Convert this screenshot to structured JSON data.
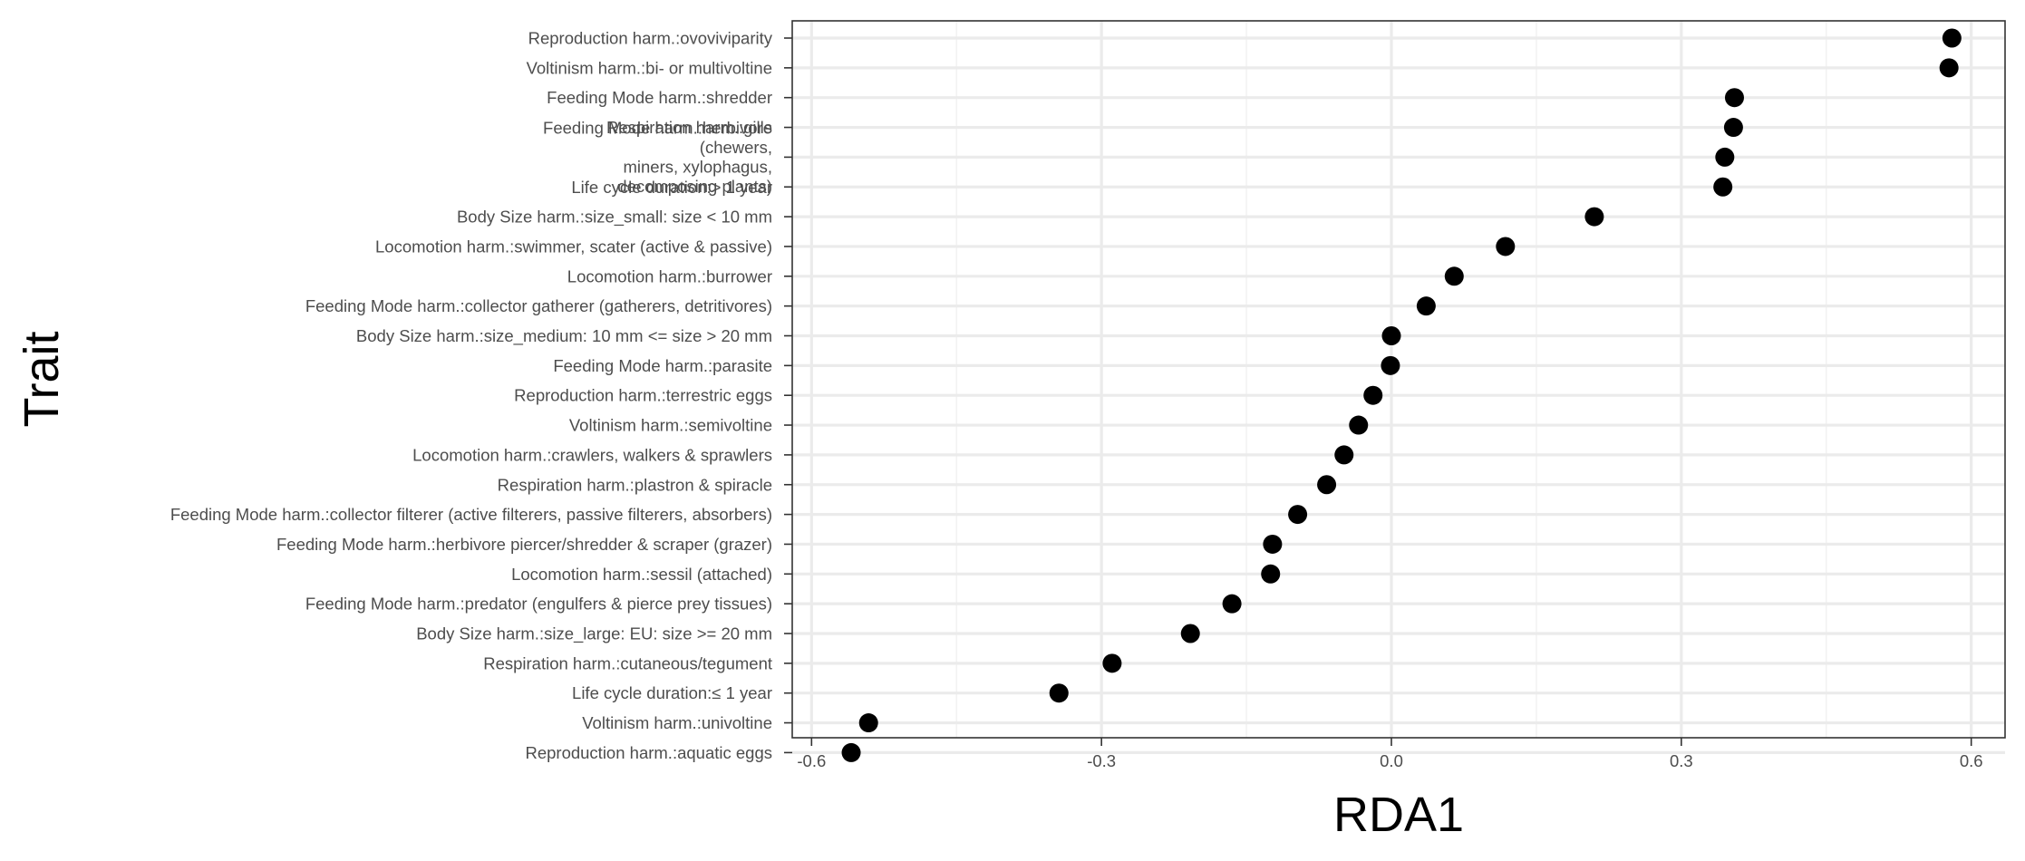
{
  "chart_data": {
    "type": "scatter",
    "title": "",
    "xlabel": "RDA1",
    "ylabel": "Trait",
    "xlim": [
      -0.62,
      0.635
    ],
    "x_ticks": [
      -0.6,
      -0.3,
      0.0,
      0.3,
      0.6
    ],
    "x_tick_labels": [
      "-0.6",
      "-0.3",
      "0.0",
      "0.3",
      "0.6"
    ],
    "grid": true,
    "legend": "none",
    "colors": {
      "point": "#000000",
      "grid_major": "#ebebeb",
      "grid_minor": "#f2f2f2",
      "panel_border": "#333333",
      "tick_label": "#4d4d4d"
    },
    "points": [
      {
        "label": "Reproduction harm.:ovoviviparity",
        "x": 0.58
      },
      {
        "label": "Voltinism harm.:bi- or multivoltine",
        "x": 0.577
      },
      {
        "label": "Feeding Mode harm.:shredder",
        "x": 0.355
      },
      {
        "label": "Respiration harm.:gills",
        "x": 0.354
      },
      {
        "label": "Feeding Mode harm.:herbivore (chewers, miners, xylophagus, decomposing plants)",
        "x": 0.345
      },
      {
        "label": "Life cycle duration:> 1 year",
        "x": 0.343
      },
      {
        "label": "Body Size harm.:size_small: size < 10 mm",
        "x": 0.21
      },
      {
        "label": "Locomotion harm.:swimmer, scater (active & passive)",
        "x": 0.118
      },
      {
        "label": "Locomotion harm.:burrower",
        "x": 0.065
      },
      {
        "label": "Feeding Mode harm.:collector gatherer (gatherers, detritivores)",
        "x": 0.036
      },
      {
        "label": "Body Size harm.:size_medium: 10 mm <= size > 20 mm",
        "x": 0.0
      },
      {
        "label": "Feeding Mode harm.:parasite",
        "x": -0.001
      },
      {
        "label": "Reproduction harm.:terrestric eggs",
        "x": -0.019
      },
      {
        "label": "Voltinism harm.:semivoltine",
        "x": -0.034
      },
      {
        "label": "Locomotion harm.:crawlers, walkers & sprawlers",
        "x": -0.049
      },
      {
        "label": "Respiration harm.:plastron & spiracle",
        "x": -0.067
      },
      {
        "label": "Feeding Mode harm.:collector filterer (active filterers, passive filterers, absorbers)",
        "x": -0.097
      },
      {
        "label": "Feeding Mode harm.:herbivore piercer/shredder & scraper (grazer)",
        "x": -0.123
      },
      {
        "label": "Locomotion harm.:sessil (attached)",
        "x": -0.125
      },
      {
        "label": "Feeding Mode harm.:predator (engulfers & pierce prey tissues)",
        "x": -0.165
      },
      {
        "label": "Body Size harm.:size_large: EU: size >= 20 mm",
        "x": -0.208
      },
      {
        "label": "Respiration harm.:cutaneous/tegument",
        "x": -0.289
      },
      {
        "label": "Life cycle duration:≤ 1 year",
        "x": -0.344
      },
      {
        "label": "Voltinism harm.:univoltine",
        "x": -0.541
      },
      {
        "label": "Reproduction harm.:aquatic eggs",
        "x": -0.559
      }
    ],
    "category_rows": [
      {
        "lines": [
          "Reproduction harm.:ovoviviparity"
        ]
      },
      {
        "lines": [
          "Voltinism harm.:bi- or multivoltine"
        ]
      },
      {
        "lines": [
          "Feeding Mode harm.:shredder"
        ]
      },
      {
        "lines": [
          "Respiration harm.:gills"
        ]
      },
      {
        "lines": [
          "Feeding Mode harm.:herbivore",
          "(chewers,",
          "miners, xylophagus,",
          "decomposing plants)"
        ]
      },
      {
        "lines": [
          "Life cycle duration:> 1 year"
        ]
      },
      {
        "lines": [
          "Body Size harm.:size_small: size < 10 mm"
        ]
      },
      {
        "lines": [
          "Locomotion harm.:swimmer, scater (active & passive)"
        ]
      },
      {
        "lines": [
          "Locomotion harm.:burrower"
        ]
      },
      {
        "lines": [
          "Feeding Mode harm.:collector gatherer (gatherers, detritivores)"
        ]
      },
      {
        "lines": [
          "Body Size harm.:size_medium: 10 mm <= size > 20 mm"
        ]
      },
      {
        "lines": [
          "Feeding Mode harm.:parasite"
        ]
      },
      {
        "lines": [
          "Reproduction harm.:terrestric eggs"
        ]
      },
      {
        "lines": [
          "Voltinism harm.:semivoltine"
        ]
      },
      {
        "lines": [
          "Locomotion harm.:crawlers, walkers & sprawlers"
        ]
      },
      {
        "lines": [
          "Respiration harm.:plastron & spiracle"
        ]
      },
      {
        "lines": [
          "Feeding Mode harm.:collector filterer (active filterers, passive filterers, absorbers)"
        ]
      },
      {
        "lines": [
          "Feeding Mode harm.:herbivore piercer/shredder & scraper (grazer)"
        ]
      },
      {
        "lines": [
          "Locomotion harm.:sessil (attached)"
        ]
      },
      {
        "lines": [
          "Feeding Mode harm.:predator (engulfers & pierce prey tissues)"
        ]
      },
      {
        "lines": [
          "Body Size harm.:size_large: EU: size >= 20 mm"
        ]
      },
      {
        "lines": [
          "Respiration harm.:cutaneous/tegument"
        ]
      },
      {
        "lines": [
          "Life cycle duration:≤ 1 year"
        ]
      },
      {
        "lines": [
          "Voltinism harm.:univoltine"
        ]
      },
      {
        "lines": [
          "Reproduction harm.:aquatic eggs"
        ]
      }
    ]
  }
}
